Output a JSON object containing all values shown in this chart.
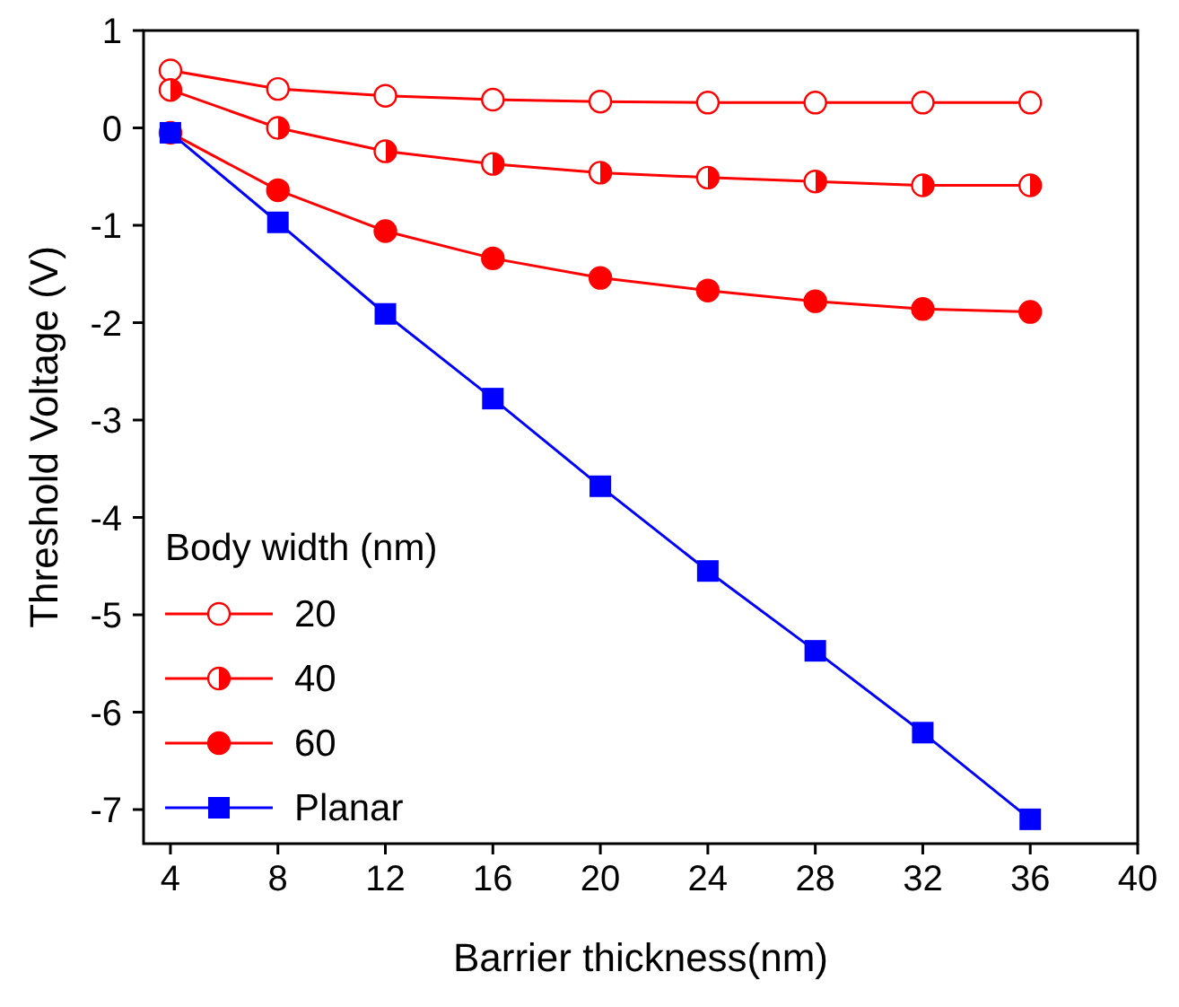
{
  "chart_data": {
    "type": "line",
    "xlabel": "Barrier thickness(nm)",
    "ylabel": "Threshold Voltage (V)",
    "legend_title": "Body width (nm)",
    "legend": "bottom left",
    "x": [
      4,
      8,
      12,
      16,
      20,
      24,
      28,
      32,
      36
    ],
    "xlim": [
      3,
      40
    ],
    "xticks": [
      4,
      8,
      12,
      16,
      20,
      24,
      28,
      32,
      36,
      40
    ],
    "ylim": [
      -7.35,
      1
    ],
    "yticks": [
      1,
      0,
      -1,
      -2,
      -3,
      -4,
      -5,
      -6,
      -7
    ],
    "grid": false,
    "line_style": "solid",
    "series": [
      {
        "name": "20",
        "color": "#ff0000",
        "marker": "circle",
        "values": [
          0.59,
          0.4,
          0.33,
          0.29,
          0.27,
          0.26,
          0.26,
          0.26,
          0.26
        ]
      },
      {
        "name": "40",
        "color": "#ff0000",
        "marker": "circle",
        "values": [
          0.39,
          0,
          -0.24,
          -0.37,
          -0.46,
          -0.51,
          -0.55,
          -0.59,
          -0.59
        ]
      },
      {
        "name": "60",
        "color": "#ff0000",
        "marker": "circle",
        "values": [
          -0.05,
          -0.64,
          -1.06,
          -1.34,
          -1.54,
          -1.67,
          -1.78,
          -1.86,
          -1.89
        ]
      },
      {
        "name": "Planar",
        "color": "#0000ff",
        "marker": "square",
        "values": [
          -0.05,
          -0.97,
          -1.91,
          -2.78,
          -3.68,
          -4.55,
          -5.37,
          -6.21,
          -7.1
        ]
      }
    ]
  }
}
